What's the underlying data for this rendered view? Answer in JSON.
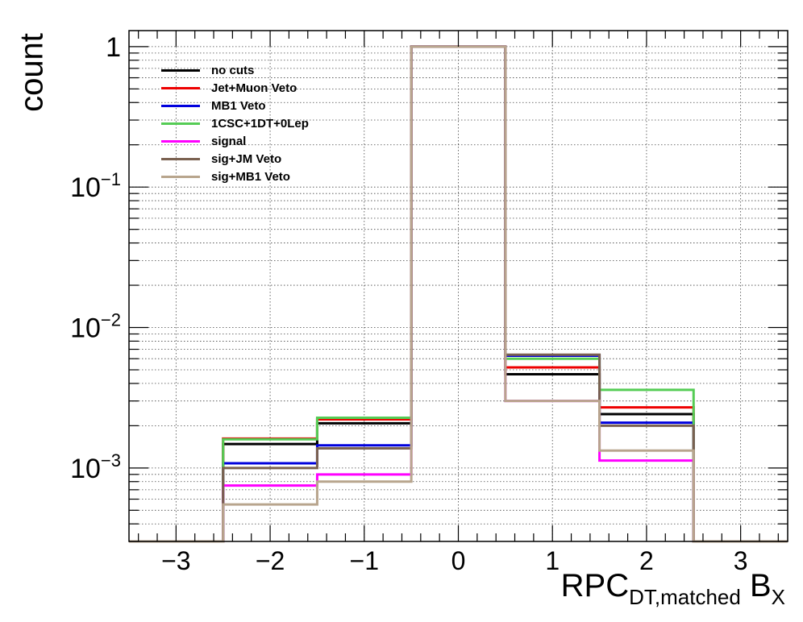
{
  "chart_data": {
    "type": "step",
    "xlabel": "RPC",
    "xlabel_sub": "DT,matched",
    "xlabel_suffix": "B",
    "xlabel_suffix_sub": "X",
    "ylabel": "count",
    "y_scale": "log",
    "xlim": [
      -3.5,
      3.5
    ],
    "ylim": [
      0.0003,
      1.3
    ],
    "grid": true,
    "legend_position": "top-left",
    "bin_edges": [
      -2.5,
      -1.5,
      -0.5,
      0.5,
      1.5,
      2.5
    ],
    "x_ticks": [
      {
        "value": -3,
        "label": "−3"
      },
      {
        "value": -2,
        "label": "−2"
      },
      {
        "value": -1,
        "label": "−1"
      },
      {
        "value": 0,
        "label": "0"
      },
      {
        "value": 1,
        "label": "1"
      },
      {
        "value": 2,
        "label": "2"
      },
      {
        "value": 3,
        "label": "3"
      }
    ],
    "y_ticks": [
      {
        "value": 1,
        "base": "1",
        "exp": ""
      },
      {
        "value": 0.1,
        "base": "10",
        "exp": "−1"
      },
      {
        "value": 0.01,
        "base": "10",
        "exp": "−2"
      },
      {
        "value": 0.001,
        "base": "10",
        "exp": "−3"
      }
    ],
    "series": [
      {
        "name": "no cuts",
        "color": "#000000",
        "values": [
          0.00148,
          0.00208,
          1.0,
          0.00465,
          0.00242
        ]
      },
      {
        "name": "Jet+Muon Veto",
        "color": "#ee0000",
        "values": [
          0.00162,
          0.00222,
          1.0,
          0.0052,
          0.0027
        ]
      },
      {
        "name": "MB1 Veto",
        "color": "#0000dd",
        "values": [
          0.00108,
          0.00145,
          1.0,
          0.0063,
          0.0021
        ]
      },
      {
        "name": "1CSC+1DT+0Lep",
        "color": "#55cc55",
        "values": [
          0.0016,
          0.00228,
          1.0,
          0.006,
          0.0036
        ]
      },
      {
        "name": "signal",
        "color": "#ff00ff",
        "values": [
          0.00075,
          0.0009,
          1.0,
          0.003,
          0.00113
        ]
      },
      {
        "name": "sig+JM Veto",
        "color": "#7a6150",
        "values": [
          0.001,
          0.00138,
          1.0,
          0.0064,
          0.002
        ]
      },
      {
        "name": "sig+MB1 Veto",
        "color": "#b8a58d",
        "values": [
          0.00055,
          0.0008,
          1.0,
          0.003,
          0.00133
        ]
      }
    ]
  }
}
